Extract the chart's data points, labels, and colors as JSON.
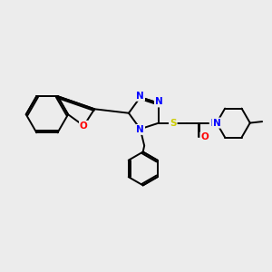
{
  "background_color": "#ececec",
  "figsize": [
    3.0,
    3.0
  ],
  "dpi": 100,
  "bond_color": "#000000",
  "bond_width": 1.4,
  "atom_colors": {
    "N": "#0000ff",
    "O": "#ff0000",
    "S": "#cccc00",
    "C": "#000000"
  },
  "font_size": 7.5
}
